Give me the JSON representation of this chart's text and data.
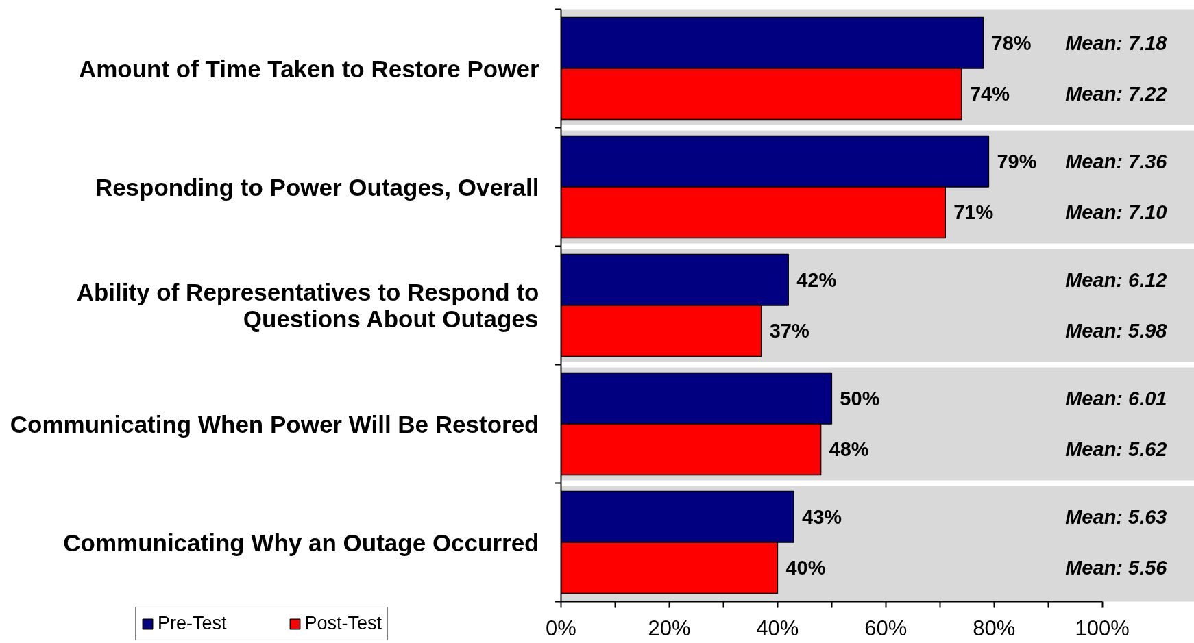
{
  "chart_data": {
    "type": "bar",
    "orientation": "horizontal",
    "categories": [
      "Amount of Time Taken to Restore Power",
      "Responding to Power Outages, Overall",
      "Ability of Representatives to Respond to\nQuestions About Outages",
      "Communicating When Power Will Be Restored",
      "Communicating Why an Outage Occurred"
    ],
    "series": [
      {
        "name": "Pre-Test",
        "color": "#000080",
        "values": [
          78,
          79,
          42,
          50,
          43
        ],
        "value_labels": [
          "78%",
          "79%",
          "42%",
          "50%",
          "43%"
        ]
      },
      {
        "name": "Post-Test",
        "color": "#ff0000",
        "values": [
          74,
          71,
          37,
          48,
          40
        ],
        "value_labels": [
          "74%",
          "71%",
          "37%",
          "48%",
          "40%"
        ]
      }
    ],
    "xlim": [
      0,
      100
    ],
    "xticks": [
      {
        "value": 0,
        "label": "0%"
      },
      {
        "value": 10,
        "label": null
      },
      {
        "value": 20,
        "label": "20%"
      },
      {
        "value": 30,
        "label": null
      },
      {
        "value": 40,
        "label": "40%"
      },
      {
        "value": 50,
        "label": null
      },
      {
        "value": 60,
        "label": "60%"
      },
      {
        "value": 70,
        "label": null
      },
      {
        "value": 80,
        "label": "80%"
      },
      {
        "value": 90,
        "label": null
      },
      {
        "value": 100,
        "label": "100%"
      }
    ],
    "grid": "y",
    "legend": "bottom left",
    "annotations": [
      "Mean: 7.18",
      "Mean: 7.22",
      "Mean: 7.36",
      "Mean: 7.10",
      "Mean: 6.12",
      "Mean: 5.98",
      "Mean: 6.01",
      "Mean: 5.62",
      "Mean: 5.63",
      "Mean: 5.56"
    ]
  }
}
